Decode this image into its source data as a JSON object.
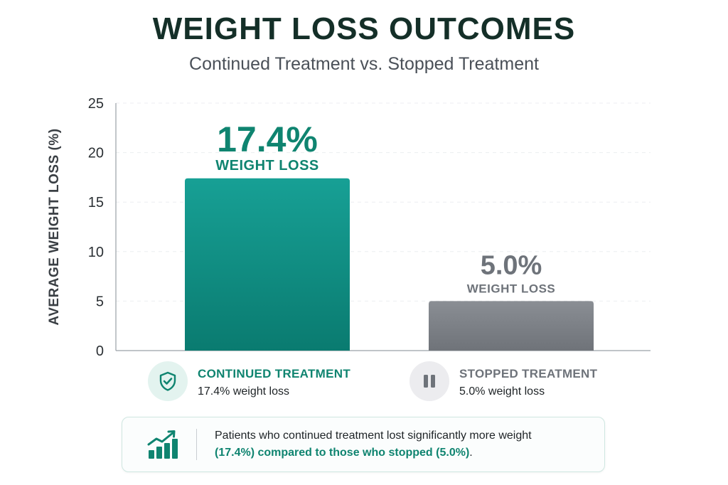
{
  "chart_data": {
    "type": "bar",
    "title": "WEIGHT LOSS OUTCOMES",
    "subtitle": "Continued Treatment vs. Stopped Treatment",
    "ylabel": "AVERAGE WEIGHT LOSS (%)",
    "xlabel": "",
    "ylim": [
      0,
      25
    ],
    "yticks": [
      0,
      5,
      10,
      15,
      20,
      25
    ],
    "grid": true,
    "categories": [
      "CONTINUED TREATMENT",
      "STOPPED TREATMENT"
    ],
    "values": [
      17.4,
      5.0
    ],
    "data_labels": [
      {
        "value": "17.4%",
        "caption": "WEIGHT LOSS"
      },
      {
        "value": "5.0%",
        "caption": "WEIGHT LOSS"
      }
    ],
    "colors": {
      "continued_top": "#17a095",
      "continued_bottom": "#0a7b70",
      "stopped_top": "#8a8e94",
      "stopped_bottom": "#6f7379",
      "continued_label": "#0f8470",
      "stopped_label": "#6e737a"
    }
  },
  "legend": {
    "continued": {
      "title": "CONTINUED TREATMENT",
      "subtitle": "17.4% weight loss",
      "icon": "shield-check-icon"
    },
    "stopped": {
      "title": "STOPPED TREATMENT",
      "subtitle": "5.0% weight loss",
      "icon": "pause-icon"
    }
  },
  "summary": {
    "icon": "trending-up-bar-icon",
    "line1": "Patients who continued treatment lost significantly more weight",
    "highlight": "(17.4%) compared to those who stopped (5.0%)",
    "tail": "."
  }
}
